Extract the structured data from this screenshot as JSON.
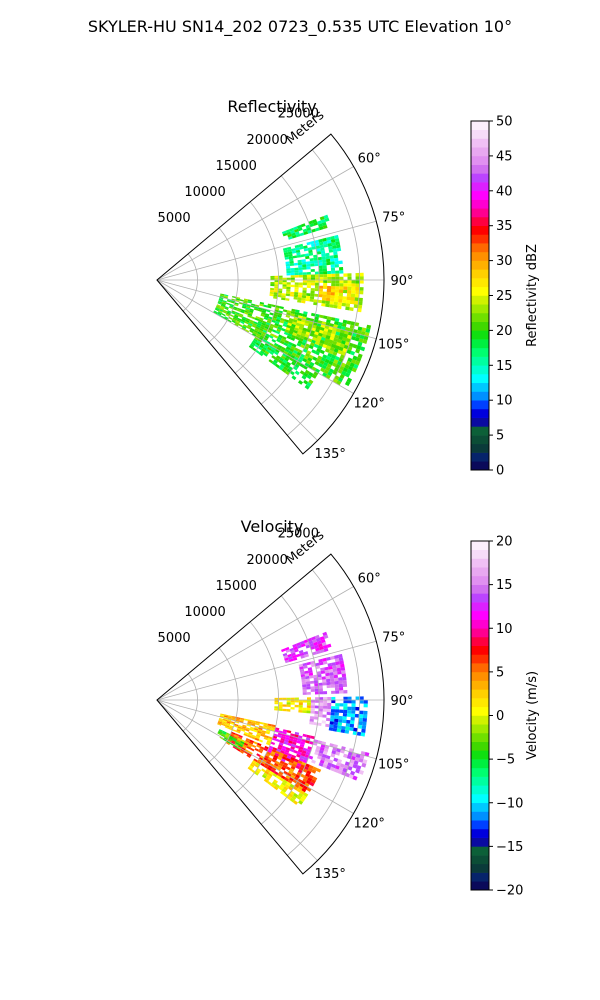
{
  "figure": {
    "title": "SKYLER-HU  SN14_202  0723_0.535 UTC Elevation 10°"
  },
  "chart_data": [
    {
      "type": "polar-sector",
      "title": "Reflectivity",
      "radial_axis_label": "Meters",
      "radial_ticks": [
        5000,
        10000,
        15000,
        20000,
        25000
      ],
      "radial_tick_labels": [
        "5000",
        "10000",
        "15000",
        "20000",
        "25000"
      ],
      "r_max": 28000,
      "azimuth_range_deg": [
        50,
        140
      ],
      "azimuth_ticks_deg": [
        60,
        75,
        90,
        105,
        120,
        135
      ],
      "azimuth_tick_labels": [
        "60°",
        "75°",
        "90°",
        "105°",
        "120°",
        "135°"
      ],
      "grid": true,
      "colorbar": {
        "label": "Reflectivity dBZ",
        "min": 0,
        "max": 50,
        "ticks": [
          0,
          5,
          10,
          15,
          20,
          25,
          30,
          35,
          40,
          45,
          50
        ],
        "tick_labels": [
          "0",
          "5",
          "10",
          "15",
          "20",
          "25",
          "30",
          "35",
          "40",
          "45",
          "50"
        ],
        "colors": [
          "#0a0a5a",
          "#06246b",
          "#0a3a3a",
          "#0b4d36",
          "#0c6038",
          "#0a0aa0",
          "#0000dd",
          "#0040ff",
          "#0090ff",
          "#00c8ff",
          "#00ffff",
          "#00ffd0",
          "#00ffa0",
          "#00ff70",
          "#00f040",
          "#10e010",
          "#40d800",
          "#70e000",
          "#a0ea00",
          "#d0f200",
          "#ffff00",
          "#ffe800",
          "#ffd000",
          "#ffb000",
          "#ff9000",
          "#ff6800",
          "#ff3000",
          "#ff0000",
          "#ff0040",
          "#ff0090",
          "#ff00d0",
          "#ff00ff",
          "#dd20ff",
          "#bb44ff",
          "#d070f0",
          "#e090f0",
          "#e8a8f0",
          "#f0c0f4",
          "#f6dcf8",
          "#fbeffc"
        ]
      },
      "regions": [
        {
          "az": [
            69,
            73
          ],
          "r": [
            16500,
            22500
          ],
          "value": 18
        },
        {
          "az": [
            76,
            88
          ],
          "r": [
            16000,
            23000
          ],
          "value": 16
        },
        {
          "az": [
            88,
            99
          ],
          "r": [
            14000,
            25500
          ],
          "value": 24
        },
        {
          "az": [
            92,
            97
          ],
          "r": [
            20000,
            25000
          ],
          "value": 28
        },
        {
          "az": [
            102,
            120
          ],
          "r": [
            8000,
            27000
          ],
          "value": 20
        },
        {
          "az": [
            104,
            112
          ],
          "r": [
            17000,
            25000
          ],
          "value": 23
        },
        {
          "az": [
            120,
            126
          ],
          "r": [
            14000,
            23000
          ],
          "value": 19
        }
      ]
    },
    {
      "type": "polar-sector",
      "title": "Velocity",
      "radial_axis_label": "Meters",
      "radial_ticks": [
        5000,
        10000,
        15000,
        20000,
        25000
      ],
      "radial_tick_labels": [
        "5000",
        "10000",
        "15000",
        "20000",
        "25000"
      ],
      "r_max": 28000,
      "azimuth_range_deg": [
        50,
        140
      ],
      "azimuth_ticks_deg": [
        60,
        75,
        90,
        105,
        120,
        135
      ],
      "azimuth_tick_labels": [
        "60°",
        "75°",
        "90°",
        "105°",
        "120°",
        "135°"
      ],
      "grid": true,
      "colorbar": {
        "label": "Velocity (m/s)",
        "min": -20,
        "max": 20,
        "ticks": [
          -20,
          -15,
          -10,
          -5,
          0,
          5,
          10,
          15,
          20
        ],
        "tick_labels": [
          "−20",
          "−15",
          "−10",
          "−5",
          "0",
          "5",
          "10",
          "15",
          "20"
        ],
        "colors": [
          "#0a0a5a",
          "#06246b",
          "#0a3a3a",
          "#0b4d36",
          "#0c6038",
          "#0a0aa0",
          "#0000dd",
          "#0040ff",
          "#0090ff",
          "#00c8ff",
          "#00ffff",
          "#00ffd0",
          "#00ffa0",
          "#00ff70",
          "#00f040",
          "#10e010",
          "#40d800",
          "#70e000",
          "#a0ea00",
          "#d0f200",
          "#ffff00",
          "#ffe800",
          "#ffd000",
          "#ffb000",
          "#ff9000",
          "#ff6800",
          "#ff3000",
          "#ff0000",
          "#ff0040",
          "#ff0090",
          "#ff00d0",
          "#ff00ff",
          "#dd20ff",
          "#bb44ff",
          "#d070f0",
          "#e090f0",
          "#e8a8f0",
          "#f0c0f4",
          "#f6dcf8",
          "#fbeffc"
        ]
      },
      "regions": [
        {
          "az": [
            68,
            74
          ],
          "r": [
            16500,
            22500
          ],
          "value": 13
        },
        {
          "az": [
            76,
            88
          ],
          "r": [
            18000,
            23500
          ],
          "value": 14
        },
        {
          "az": [
            89,
            95
          ],
          "r": [
            14500,
            19000
          ],
          "value": 1
        },
        {
          "az": [
            89,
            99
          ],
          "r": [
            19000,
            21500
          ],
          "value": 16
        },
        {
          "az": [
            89,
            100
          ],
          "r": [
            21500,
            26000
          ],
          "value": -11
        },
        {
          "az": [
            102,
            112
          ],
          "r": [
            8000,
            15000
          ],
          "value": 3
        },
        {
          "az": [
            103,
            116
          ],
          "r": [
            15000,
            20000
          ],
          "value": 11
        },
        {
          "az": [
            104,
            112
          ],
          "r": [
            20000,
            27000
          ],
          "value": 15
        },
        {
          "az": [
            113,
            122
          ],
          "r": [
            10000,
            22000
          ],
          "value": 6
        },
        {
          "az": [
            122,
            127
          ],
          "r": [
            14000,
            22000
          ],
          "value": 1
        },
        {
          "az": [
            115,
            121
          ],
          "r": [
            8500,
            12000
          ],
          "value": -3
        }
      ]
    }
  ]
}
